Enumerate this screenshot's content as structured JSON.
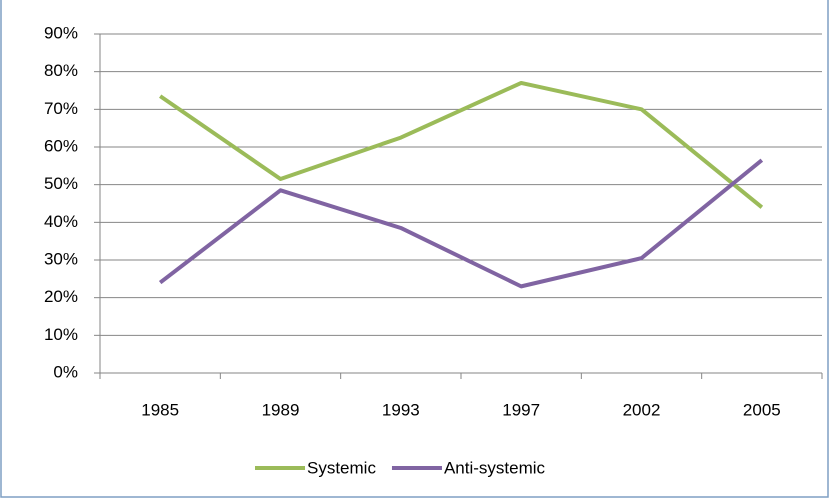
{
  "chart_data": {
    "type": "line",
    "categories": [
      "1985",
      "1989",
      "1993",
      "1997",
      "2002",
      "2005"
    ],
    "series": [
      {
        "name": "Systemic",
        "color": "#9bbb59",
        "values": [
          73.5,
          51.5,
          62.5,
          77,
          70,
          44
        ]
      },
      {
        "name": "Anti-systemic",
        "color": "#8064a2",
        "values": [
          24,
          48.5,
          38.5,
          23,
          30.5,
          56.5
        ]
      }
    ],
    "ylim": [
      0,
      90
    ],
    "yticks": [
      {
        "value": 0,
        "label": "0%"
      },
      {
        "value": 10,
        "label": "10%"
      },
      {
        "value": 20,
        "label": "20%"
      },
      {
        "value": 30,
        "label": "30%"
      },
      {
        "value": 40,
        "label": "40%"
      },
      {
        "value": 50,
        "label": "50%"
      },
      {
        "value": 60,
        "label": "60%"
      },
      {
        "value": 70,
        "label": "70%"
      },
      {
        "value": 80,
        "label": "80%"
      },
      {
        "value": 90,
        "label": "90%"
      }
    ],
    "grid": true,
    "legend": "bottom"
  }
}
